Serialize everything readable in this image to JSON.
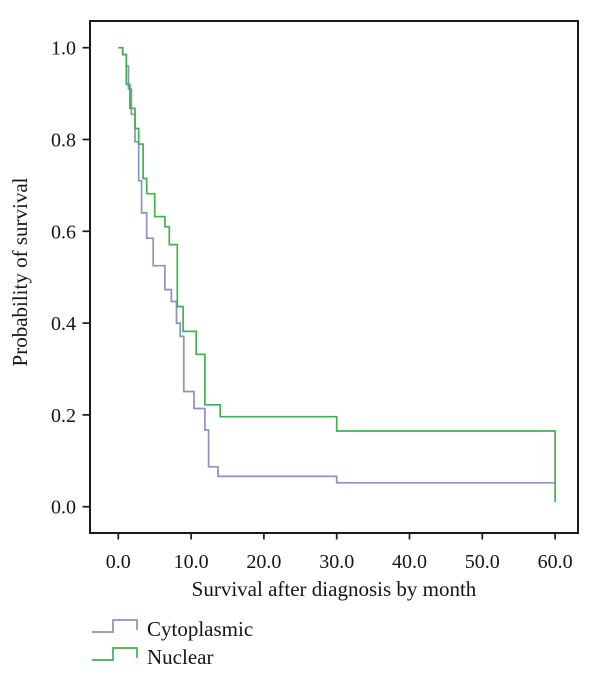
{
  "figure": {
    "background": "#ffffff",
    "frame_color": "#1a1a1a"
  },
  "chart_data": {
    "type": "line",
    "subtype": "kaplan_meier_step_survival",
    "title": "",
    "xlabel": "Survival after diagnosis by month",
    "ylabel": "Probability of survival",
    "xlim": [
      -3.9,
      63.2
    ],
    "ylim": [
      -0.06,
      1.06
    ],
    "grid": false,
    "legend_position": "below-left",
    "x_axis": {
      "ticks": [
        0,
        10,
        20,
        30,
        40,
        50,
        60
      ],
      "tick_labels": [
        "0.0",
        "10.0",
        "20.0",
        "30.0",
        "40.0",
        "50.0",
        "60.0"
      ]
    },
    "y_axis": {
      "ticks": [
        0,
        0.2,
        0.4,
        0.6,
        0.8,
        1.0
      ],
      "tick_labels": [
        "0.0",
        "0.2",
        "0.4",
        "0.6",
        "0.8",
        "1.0"
      ]
    },
    "series": [
      {
        "name": "Cytoplasmic",
        "color": "#8b93c0",
        "points": [
          [
            0.3,
            1.0
          ],
          [
            0.6,
            0.985
          ],
          [
            1.1,
            0.96
          ],
          [
            1.4,
            0.91
          ],
          [
            1.8,
            0.855
          ],
          [
            2.3,
            0.795
          ],
          [
            2.8,
            0.71
          ],
          [
            3.2,
            0.64
          ],
          [
            3.9,
            0.585
          ],
          [
            4.8,
            0.525
          ],
          [
            6.4,
            0.473
          ],
          [
            7.3,
            0.447
          ],
          [
            8.0,
            0.4
          ],
          [
            8.5,
            0.371
          ],
          [
            9.0,
            0.251
          ],
          [
            10.4,
            0.214
          ],
          [
            11.9,
            0.167
          ],
          [
            12.4,
            0.087
          ],
          [
            13.7,
            0.066
          ],
          [
            30,
            0.052
          ],
          [
            60,
            0.052
          ]
        ]
      },
      {
        "name": "Nuclear",
        "color": "#42b050",
        "points": [
          [
            0,
            1.0
          ],
          [
            0.6,
            0.985
          ],
          [
            1.1,
            0.92
          ],
          [
            1.6,
            0.868
          ],
          [
            2.3,
            0.824
          ],
          [
            2.8,
            0.79
          ],
          [
            3.4,
            0.715
          ],
          [
            3.9,
            0.682
          ],
          [
            5.0,
            0.632
          ],
          [
            6.4,
            0.61
          ],
          [
            7.0,
            0.571
          ],
          [
            8.1,
            0.436
          ],
          [
            8.9,
            0.382
          ],
          [
            10.7,
            0.332
          ],
          [
            11.9,
            0.222
          ],
          [
            14.0,
            0.196
          ],
          [
            30,
            0.165
          ],
          [
            60,
            0.01
          ]
        ]
      }
    ]
  }
}
